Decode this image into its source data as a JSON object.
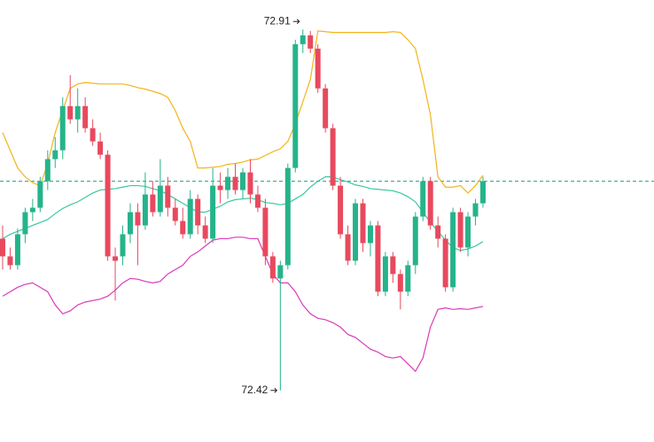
{
  "chart_data": {
    "type": "candlestick",
    "ylim": [
      72.35,
      72.95
    ],
    "up_color": "#26b38a",
    "down_color": "#e8495e",
    "open": [
      72.626,
      72.602,
      72.59,
      72.632,
      72.662,
      72.668,
      72.704,
      72.734,
      72.746,
      72.806,
      72.788,
      72.806,
      72.776,
      72.758,
      72.74,
      72.602,
      72.602,
      72.632,
      72.662,
      72.644,
      72.686,
      72.662,
      72.698,
      72.668,
      72.65,
      72.632,
      72.68,
      72.644,
      72.626,
      72.698,
      72.692,
      72.71,
      72.692,
      72.716,
      72.686,
      72.668,
      72.602,
      72.572,
      72.59,
      72.722,
      72.89,
      72.902,
      72.884,
      72.83,
      72.776,
      72.698,
      72.632,
      72.596,
      72.674,
      72.62,
      72.644,
      72.554,
      72.602,
      72.578,
      72.554,
      72.59,
      72.656,
      72.704,
      72.644,
      72.626,
      72.56,
      72.662,
      72.614,
      72.656,
      72.674
    ],
    "high": [
      72.644,
      72.614,
      72.64,
      72.668,
      72.68,
      72.71,
      72.746,
      72.764,
      72.818,
      72.848,
      72.83,
      72.818,
      72.788,
      72.77,
      72.746,
      72.614,
      72.644,
      72.674,
      72.674,
      72.716,
      72.704,
      72.734,
      72.71,
      72.68,
      72.668,
      72.692,
      72.686,
      72.656,
      72.722,
      72.716,
      72.722,
      72.728,
      72.722,
      72.734,
      72.698,
      72.68,
      72.608,
      72.596,
      72.728,
      72.896,
      72.91,
      72.908,
      72.89,
      72.836,
      72.782,
      72.71,
      72.644,
      72.68,
      72.68,
      72.65,
      72.65,
      72.608,
      72.608,
      72.584,
      72.596,
      72.662,
      72.71,
      72.71,
      72.656,
      72.632,
      72.668,
      72.668,
      72.662,
      72.68,
      72.71
    ],
    "low": [
      72.584,
      72.584,
      72.584,
      72.62,
      72.65,
      72.662,
      72.692,
      72.722,
      72.734,
      72.782,
      72.77,
      72.77,
      72.752,
      72.734,
      72.596,
      72.542,
      72.59,
      72.62,
      72.59,
      72.638,
      72.656,
      72.656,
      72.656,
      72.644,
      72.626,
      72.626,
      72.632,
      72.62,
      72.62,
      72.674,
      72.68,
      72.686,
      72.68,
      72.674,
      72.662,
      72.59,
      72.566,
      72.42,
      72.584,
      72.716,
      72.878,
      72.878,
      72.824,
      72.77,
      72.692,
      72.626,
      72.59,
      72.59,
      72.608,
      72.602,
      72.548,
      72.548,
      72.566,
      72.53,
      72.548,
      72.578,
      72.65,
      72.638,
      72.614,
      72.554,
      72.554,
      72.608,
      72.602,
      72.644,
      72.668
    ],
    "close": [
      72.602,
      72.59,
      72.632,
      72.662,
      72.668,
      72.704,
      72.734,
      72.746,
      72.806,
      72.788,
      72.806,
      72.776,
      72.758,
      72.74,
      72.602,
      72.596,
      72.632,
      72.662,
      72.644,
      72.686,
      72.662,
      72.698,
      72.668,
      72.65,
      72.632,
      72.68,
      72.644,
      72.626,
      72.698,
      72.692,
      72.71,
      72.692,
      72.716,
      72.686,
      72.668,
      72.602,
      72.572,
      72.59,
      72.722,
      72.89,
      72.902,
      72.884,
      72.83,
      72.776,
      72.698,
      72.632,
      72.596,
      72.674,
      72.62,
      72.644,
      72.554,
      72.602,
      72.578,
      72.554,
      72.59,
      72.656,
      72.704,
      72.644,
      72.626,
      72.56,
      72.662,
      72.614,
      72.656,
      72.674,
      72.704
    ],
    "overlays": [
      {
        "color": "#f2b51c",
        "values": [
          72.77,
          72.746,
          72.722,
          72.71,
          72.702,
          72.698,
          72.728,
          72.77,
          72.8,
          72.83,
          72.836,
          72.838,
          72.837,
          72.836,
          72.836,
          72.836,
          72.836,
          72.834,
          72.831,
          72.829,
          72.826,
          72.823,
          72.818,
          72.8,
          72.776,
          72.758,
          72.722,
          72.722,
          72.723,
          72.724,
          72.727,
          72.728,
          72.73,
          72.733,
          72.734,
          72.739,
          72.744,
          72.748,
          72.758,
          72.782,
          72.812,
          72.842,
          72.908,
          72.907,
          72.906,
          72.906,
          72.906,
          72.906,
          72.906,
          72.906,
          72.906,
          72.906,
          72.907,
          72.906,
          72.896,
          72.884,
          72.842,
          72.794,
          72.71,
          72.696,
          72.696,
          72.698,
          72.688,
          72.698,
          72.712
        ]
      },
      {
        "color": "#3cc7a3",
        "values": [
          72.626,
          72.632,
          72.636,
          72.64,
          72.644,
          72.648,
          72.652,
          72.66,
          72.667,
          72.672,
          72.676,
          72.682,
          72.688,
          72.692,
          72.693,
          72.694,
          72.696,
          72.698,
          72.698,
          72.697,
          72.694,
          72.691,
          72.686,
          72.68,
          72.674,
          72.668,
          72.662,
          72.662,
          72.666,
          72.67,
          72.676,
          72.679,
          72.68,
          72.681,
          72.679,
          72.675,
          72.674,
          72.672,
          72.674,
          72.68,
          72.686,
          72.696,
          72.704,
          72.71,
          72.71,
          72.706,
          72.703,
          72.699,
          72.697,
          72.694,
          72.693,
          72.692,
          72.691,
          72.688,
          72.683,
          72.676,
          72.662,
          72.648,
          72.636,
          72.624,
          72.614,
          72.61,
          72.612,
          72.616,
          72.622
        ]
      },
      {
        "color": "#d93cba",
        "values": [
          72.548,
          72.554,
          72.56,
          72.564,
          72.566,
          72.56,
          72.554,
          72.536,
          72.524,
          72.528,
          72.536,
          72.54,
          72.542,
          72.544,
          72.548,
          72.556,
          72.566,
          72.572,
          72.571,
          72.568,
          72.566,
          72.568,
          72.578,
          72.584,
          72.59,
          72.602,
          72.608,
          72.616,
          72.624,
          72.626,
          72.626,
          72.628,
          72.628,
          72.626,
          72.626,
          72.602,
          72.578,
          72.566,
          72.566,
          72.554,
          72.536,
          72.524,
          72.518,
          72.516,
          72.512,
          72.506,
          72.496,
          72.492,
          72.484,
          72.476,
          72.472,
          72.466,
          72.464,
          72.466,
          72.456,
          72.446,
          72.464,
          72.506,
          72.53,
          72.532,
          72.53,
          72.531,
          72.53,
          72.532,
          72.534
        ]
      }
    ],
    "price_line": {
      "value": 72.704,
      "color": "#2a9d7c",
      "dashed": true
    },
    "annotations": [
      {
        "label": "72.91",
        "value": 72.91
      },
      {
        "label": "72.42",
        "value": 72.42
      }
    ]
  }
}
